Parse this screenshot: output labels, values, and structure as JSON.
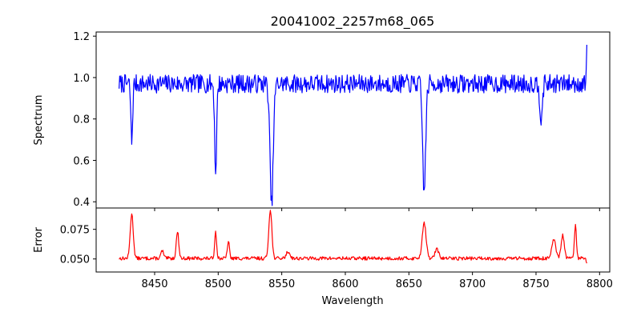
{
  "chart_data": [
    {
      "type": "line",
      "title": "20041002_2257m68_065",
      "xlabel": "",
      "ylabel": "Spectrum",
      "xlim": [
        8404,
        8808
      ],
      "ylim": [
        0.37,
        1.22
      ],
      "x_ticks": [
        8450,
        8500,
        8550,
        8600,
        8650,
        8700,
        8750,
        8800
      ],
      "y_ticks": [
        0.4,
        0.6,
        0.8,
        1.0,
        1.2
      ],
      "y_tick_labels": [
        "0.4",
        "0.6",
        "0.8",
        "1.0",
        "1.2"
      ],
      "show_x_tick_labels": false,
      "grid": false,
      "color": "#0000ff",
      "x_range": [
        8422,
        8790
      ],
      "baseline": 0.97,
      "noise": 0.045,
      "seed": 7,
      "features": [
        {
          "x": 8432,
          "value": 0.69,
          "width": 0.7
        },
        {
          "x": 8498,
          "value": 0.54,
          "width": 0.8
        },
        {
          "x": 8542,
          "value": 0.385,
          "width": 1.3
        },
        {
          "x": 8662,
          "value": 0.45,
          "width": 1.2
        },
        {
          "x": 8754,
          "value": 0.81,
          "width": 1.0
        },
        {
          "x": 8790,
          "value": 1.17,
          "width": 0.4
        }
      ]
    },
    {
      "type": "line",
      "title": "",
      "xlabel": "Wavelength",
      "ylabel": "Error",
      "xlim": [
        8404,
        8808
      ],
      "ylim": [
        0.039,
        0.093
      ],
      "x_ticks": [
        8450,
        8500,
        8550,
        8600,
        8650,
        8700,
        8750,
        8800
      ],
      "x_tick_labels": [
        "8450",
        "8500",
        "8550",
        "8600",
        "8650",
        "8700",
        "8750",
        "8800"
      ],
      "y_ticks": [
        0.05,
        0.075
      ],
      "y_tick_labels": [
        "0.050",
        "0.075"
      ],
      "grid": false,
      "color": "#ff0000",
      "x_range": [
        8422,
        8790
      ],
      "baseline": 0.0505,
      "noise": 0.0015,
      "seed": 13,
      "features": [
        {
          "x": 8432,
          "value": 0.088,
          "width": 1.2
        },
        {
          "x": 8456,
          "value": 0.057,
          "width": 1.0
        },
        {
          "x": 8468,
          "value": 0.073,
          "width": 1.0
        },
        {
          "x": 8498,
          "value": 0.073,
          "width": 0.8
        },
        {
          "x": 8508,
          "value": 0.065,
          "width": 0.8
        },
        {
          "x": 8541,
          "value": 0.092,
          "width": 1.2
        },
        {
          "x": 8555,
          "value": 0.056,
          "width": 1.5
        },
        {
          "x": 8662,
          "value": 0.081,
          "width": 1.5
        },
        {
          "x": 8672,
          "value": 0.058,
          "width": 1.5
        },
        {
          "x": 8764,
          "value": 0.066,
          "width": 1.5
        },
        {
          "x": 8771,
          "value": 0.07,
          "width": 1.2
        },
        {
          "x": 8781,
          "value": 0.078,
          "width": 0.8
        },
        {
          "x": 8790,
          "value": 0.046,
          "width": 0.4
        }
      ]
    }
  ]
}
